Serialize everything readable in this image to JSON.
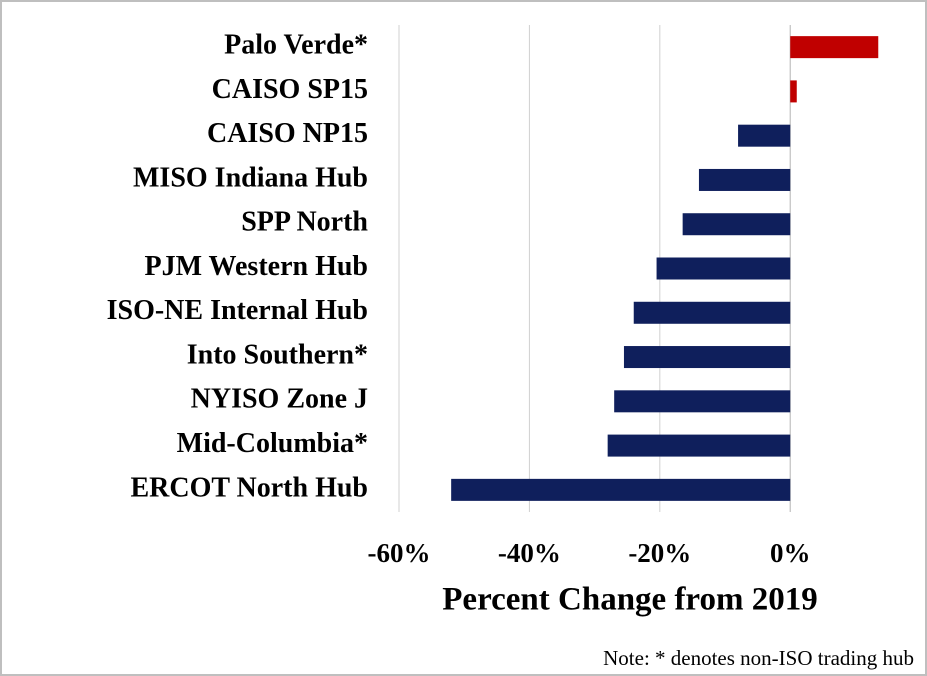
{
  "chart_data": {
    "type": "hbar",
    "categories": [
      "Palo Verde*",
      "CAISO SP15",
      "CAISO NP15",
      "MISO Indiana Hub",
      "SPP North",
      "PJM Western Hub",
      "ISO-NE Internal Hub",
      "Into Southern*",
      "NYISO Zone J",
      "Mid-Columbia*",
      "ERCOT North Hub"
    ],
    "values": [
      13.5,
      1,
      -8,
      -14,
      -16.5,
      -20.5,
      -24,
      -25.5,
      -27,
      -28,
      -52
    ],
    "positive_color": "#c00000",
    "negative_color": "#0f1f5c",
    "xlim": [
      -60,
      15.3
    ],
    "xticks": [
      {
        "value": -60,
        "label": "-60%"
      },
      {
        "value": -40,
        "label": "-40%"
      },
      {
        "value": -20,
        "label": "-20%"
      },
      {
        "value": 0,
        "label": "0%"
      }
    ],
    "grid": true,
    "x_label": "Percent Change from 2019",
    "note": "Note: * denotes non-ISO trading hub"
  }
}
